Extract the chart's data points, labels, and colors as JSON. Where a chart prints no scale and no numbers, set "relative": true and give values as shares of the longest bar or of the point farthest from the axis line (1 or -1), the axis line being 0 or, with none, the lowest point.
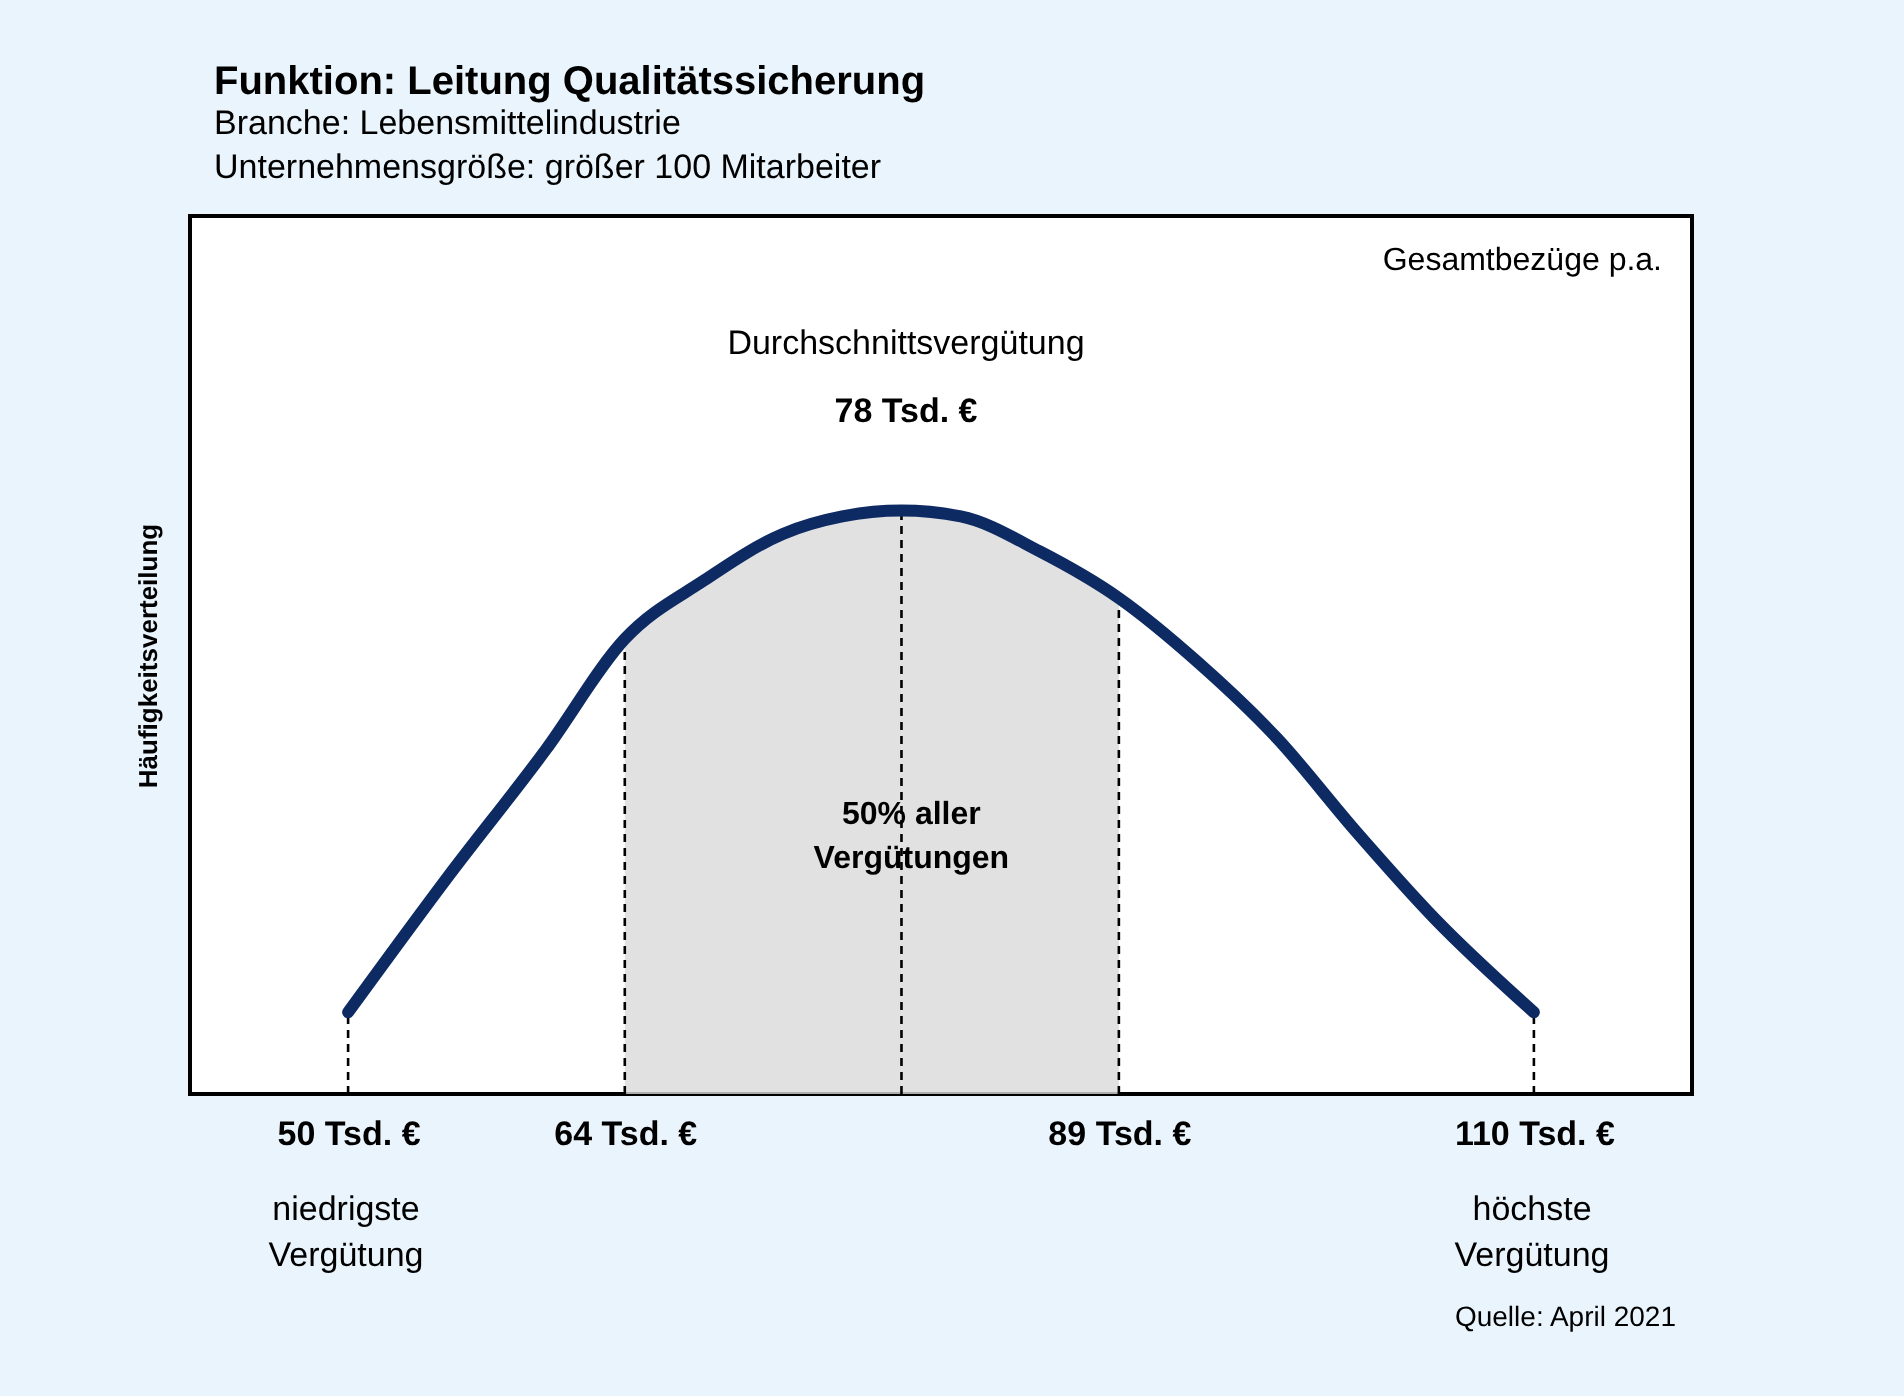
{
  "chart_data": {
    "type": "line",
    "title": "Funktion: Leitung Qualitätssicherung",
    "subtitle": "Branche: Lebensmittelindustrie\nUnternehmensgröße: größer 100 Mitarbeiter",
    "ylabel": "Häufigkeitsverteilung",
    "relative": true,
    "x": [
      50,
      55,
      60,
      64,
      68,
      72,
      75,
      78,
      81,
      85,
      89,
      93,
      97,
      101,
      105,
      110
    ],
    "series": [
      {
        "color": "#0d2a63",
        "values": [
          0.14,
          0.37,
          0.59,
          0.78,
          0.88,
          0.96,
          0.99,
          1.0,
          0.99,
          0.93,
          0.85,
          0.74,
          0.61,
          0.45,
          0.3,
          0.14
        ]
      }
    ],
    "xlim": [
      42,
      118
    ],
    "xticks": [
      {
        "value": 50,
        "label": "50 Tsd. €"
      },
      {
        "value": 64,
        "label": "64 Tsd. €"
      },
      {
        "value": 89,
        "label": "89 Tsd. €"
      },
      {
        "value": 110,
        "label": "110 Tsd. €"
      }
    ],
    "ref_lines": [
      {
        "axis": "x",
        "value": 50,
        "line_style": "dashed",
        "color": "#000000"
      },
      {
        "axis": "x",
        "value": 64,
        "line_style": "dashed",
        "color": "#000000"
      },
      {
        "axis": "x",
        "value": 78,
        "line_style": "dashed",
        "color": "#000000"
      },
      {
        "axis": "x",
        "value": 89,
        "line_style": "dashed",
        "color": "#000000"
      },
      {
        "axis": "x",
        "value": 110,
        "line_style": "dashed",
        "color": "#000000"
      }
    ],
    "bands": [
      {
        "axis": "x",
        "from": 64,
        "to": 89,
        "label": "50% aller\nVergütungen",
        "color": "#d9d9d9"
      }
    ],
    "annotations": [
      "Gesamtbezüge p.a.",
      "Durchschnittsvergütung",
      "78 Tsd. €",
      "niedrigste\nVergütung",
      "höchste\nVergütung",
      "Quelle: April 2021"
    ],
    "grid": false,
    "line_style": "solid",
    "marker": "none"
  }
}
